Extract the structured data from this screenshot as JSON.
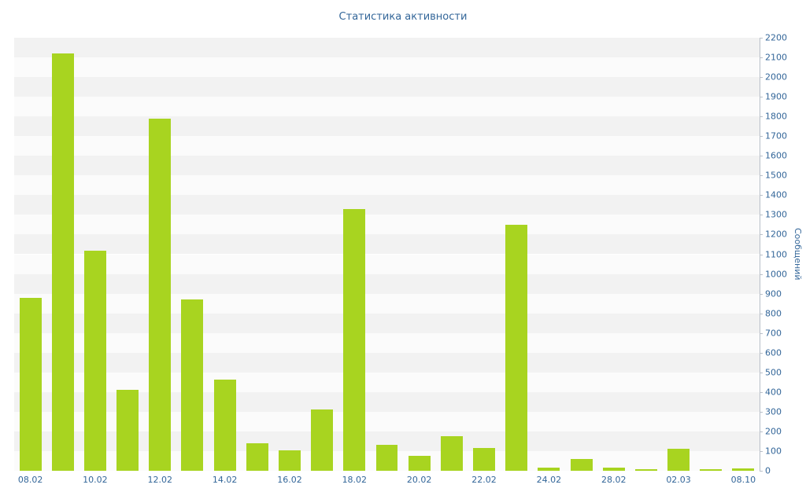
{
  "title": "Статистика активности",
  "colors": {
    "bar": "#a8d420",
    "axis_text": "#336699",
    "stripe": "#f2f2f2",
    "stripe_alt": "#fbfbfb",
    "axis_line": "#b8bfc8",
    "background": "#ffffff"
  },
  "chart_data": {
    "type": "bar",
    "title": "Статистика активности",
    "xlabel": "",
    "ylabel": "Сообщений",
    "ylim": [
      0,
      2200
    ],
    "ytick_step": 100,
    "y_ticks": [
      0,
      100,
      200,
      300,
      400,
      500,
      600,
      700,
      800,
      900,
      1000,
      1100,
      1200,
      1300,
      1400,
      1500,
      1600,
      1700,
      1800,
      1900,
      2000,
      2100,
      2200
    ],
    "grid": "horizontal-stripes",
    "legend_position": "none",
    "x_labels": [
      "08.02",
      "10.02",
      "12.02",
      "14.02",
      "16.02",
      "18.02",
      "20.02",
      "22.02",
      "24.02",
      "28.02",
      "02.03",
      "08.10"
    ],
    "label_every": 2,
    "values": [
      880,
      2120,
      1120,
      410,
      1790,
      870,
      465,
      140,
      105,
      310,
      1330,
      130,
      75,
      175,
      115,
      1250,
      15,
      60,
      15,
      10,
      112,
      8,
      12
    ]
  }
}
